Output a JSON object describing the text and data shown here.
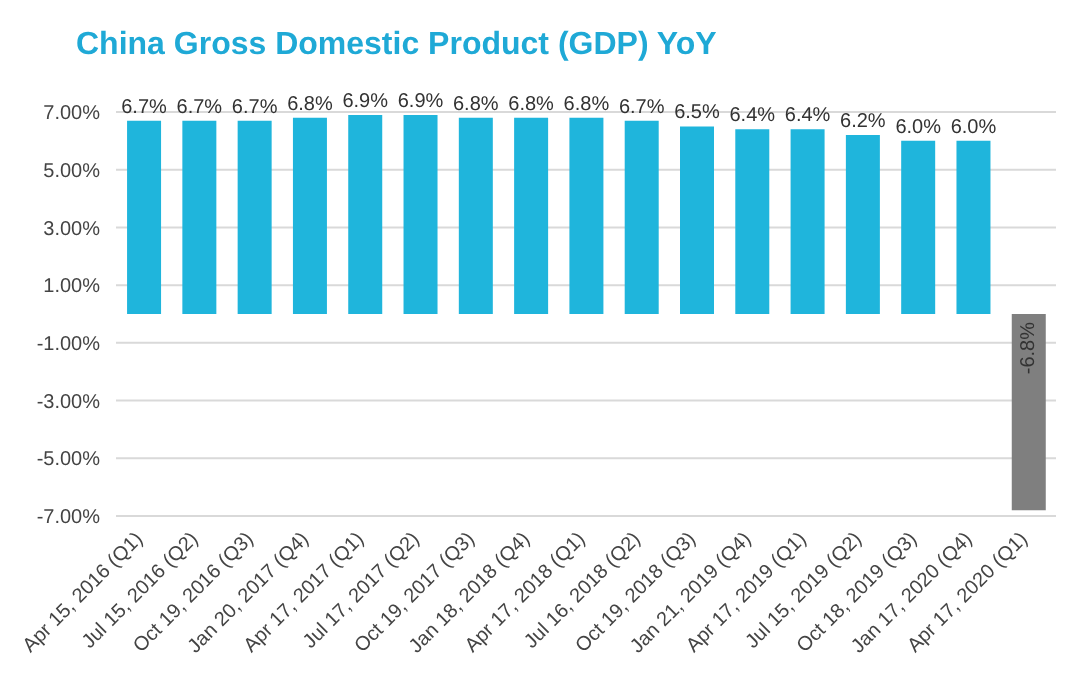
{
  "chart_data": {
    "type": "bar",
    "title": "China Gross Domestic Product (GDP) YoY",
    "categories": [
      "Apr 15, 2016 (Q1)",
      "Jul 15, 2016 (Q2)",
      "Oct 19, 2016 (Q3)",
      "Jan 20, 2017 (Q4)",
      "Apr 17, 2017 (Q1)",
      "Jul 17, 2017 (Q2)",
      "Oct 19, 2017 (Q3)",
      "Jan 18, 2018 (Q4)",
      "Apr 17, 2018 (Q1)",
      "Jul 16, 2018 (Q2)",
      "Oct 19, 2018 (Q3)",
      "Jan 21, 2019 (Q4)",
      "Apr 17, 2019 (Q1)",
      "Jul 15, 2019 (Q2)",
      "Oct 18, 2019 (Q3)",
      "Jan 17, 2020 (Q4)",
      "Apr 17, 2020 (Q1)"
    ],
    "values": [
      6.7,
      6.7,
      6.7,
      6.8,
      6.9,
      6.9,
      6.8,
      6.8,
      6.8,
      6.7,
      6.5,
      6.4,
      6.4,
      6.2,
      6.0,
      6.0,
      -6.8
    ],
    "value_labels": [
      "6.7%",
      "6.7%",
      "6.7%",
      "6.8%",
      "6.9%",
      "6.9%",
      "6.8%",
      "6.8%",
      "6.8%",
      "6.7%",
      "6.5%",
      "6.4%",
      "6.4%",
      "6.2%",
      "6.0%",
      "6.0%",
      "-6.8%"
    ],
    "colors": [
      "#1fb5dc",
      "#1fb5dc",
      "#1fb5dc",
      "#1fb5dc",
      "#1fb5dc",
      "#1fb5dc",
      "#1fb5dc",
      "#1fb5dc",
      "#1fb5dc",
      "#1fb5dc",
      "#1fb5dc",
      "#1fb5dc",
      "#1fb5dc",
      "#1fb5dc",
      "#1fb5dc",
      "#1fb5dc",
      "#7f7f7f"
    ],
    "ylim": [
      -7,
      7
    ],
    "yticks": [
      {
        "value": -7,
        "label": "-7.00%"
      },
      {
        "value": -5,
        "label": "-5.00%"
      },
      {
        "value": -3,
        "label": "-3.00%"
      },
      {
        "value": -1,
        "label": "-1.00%"
      },
      {
        "value": 1,
        "label": "1.00%"
      },
      {
        "value": 3,
        "label": "3.00%"
      },
      {
        "value": 5,
        "label": "5.00%"
      },
      {
        "value": 7,
        "label": "7.00%"
      }
    ],
    "grid": "y"
  }
}
